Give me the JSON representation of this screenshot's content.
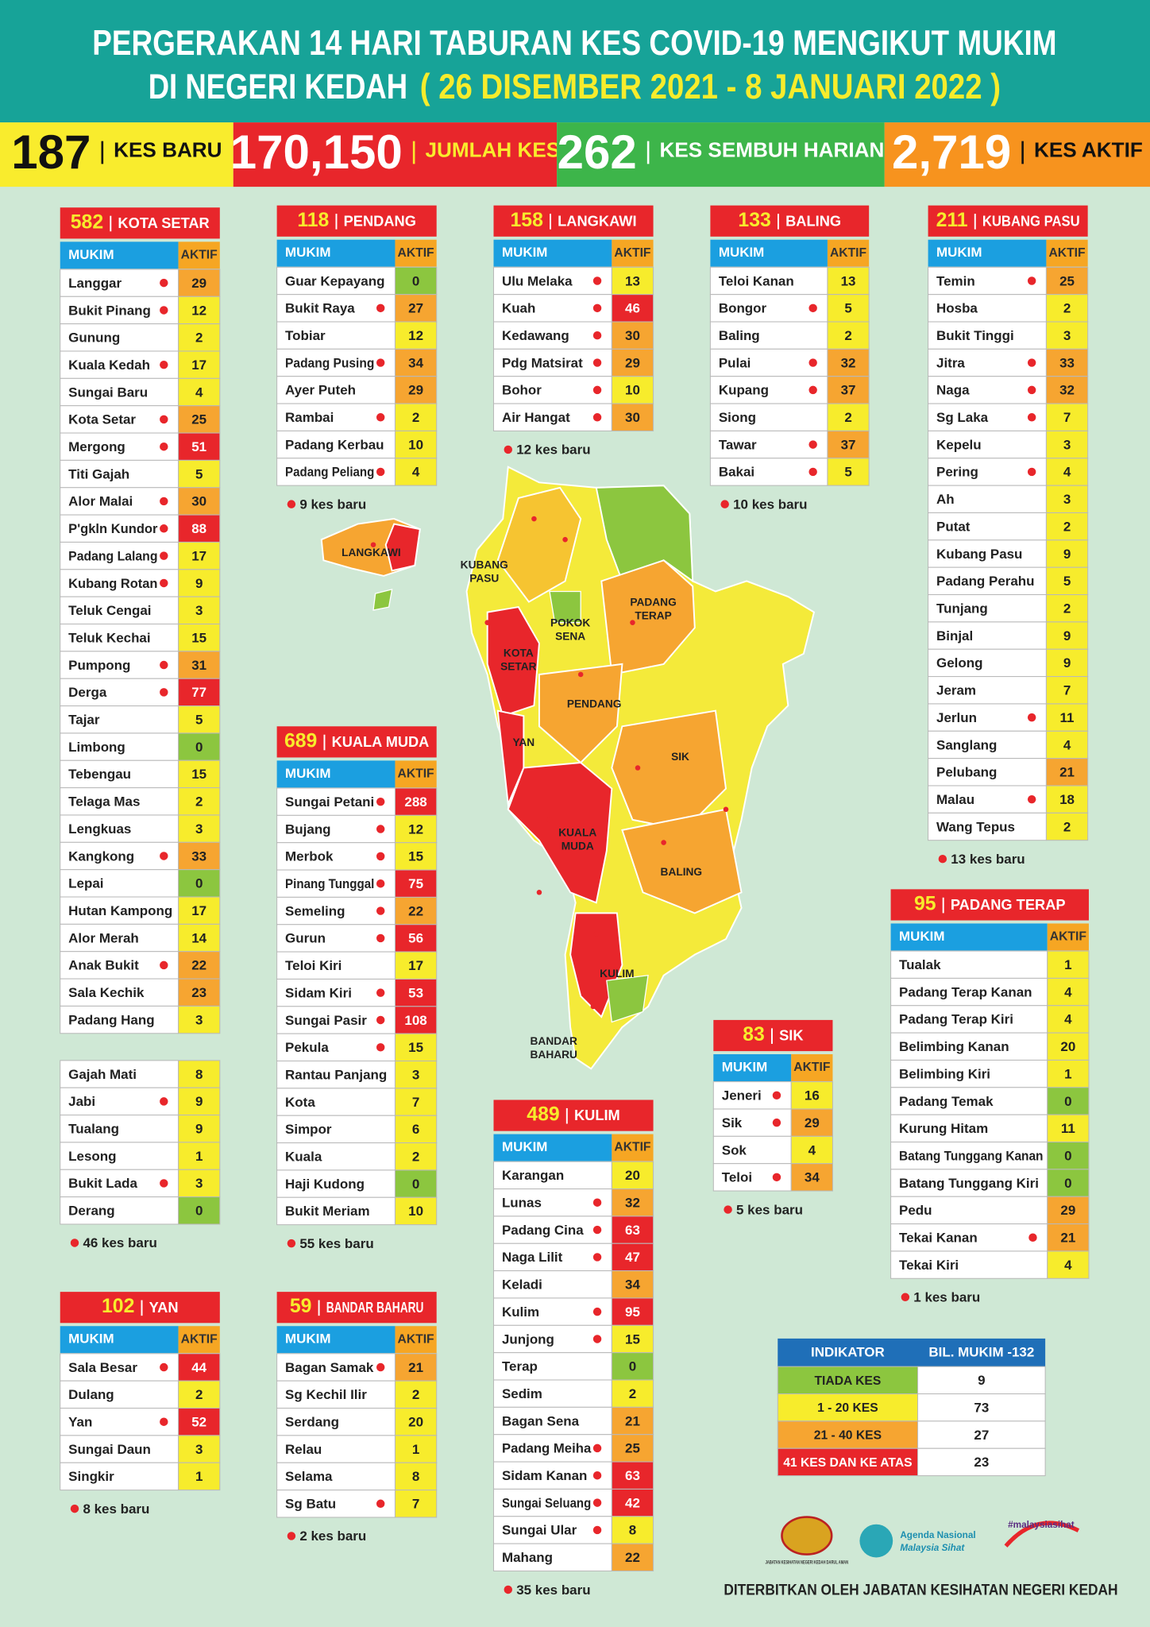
{
  "header": {
    "title_line1": "PERGERAKAN 14 HARI TABURAN KES COVID-19 MENGIKUT MUKIM",
    "title_line2": "DI NEGERI KEDAH",
    "date_range": "( 26 DISEMBER 2021 - 8 JANUARI 2022 )"
  },
  "stats": [
    {
      "value": "187",
      "label": "KES BARU",
      "color": "#f9ec2d",
      "number_color": "#111111",
      "label_color": "#111111"
    },
    {
      "value": "170,150",
      "label": "JUMLAH KES",
      "color": "#e8262b",
      "number_color": "#ffffff",
      "label_color": "#f9ec2d"
    },
    {
      "value": "262",
      "label": "KES SEMBUH HARIAN",
      "color": "#3db54a",
      "number_color": "#ffffff",
      "label_color": "#ffffff"
    },
    {
      "value": "2,719",
      "label": "KES AKTIF",
      "color": "#f7931e",
      "number_color": "#ffffff",
      "label_color": "#111111"
    }
  ],
  "column_headers": [
    "MUKIM",
    "AKTIF"
  ],
  "districts": [
    {
      "total": 582,
      "name": "KOTA SETAR",
      "footer": "46 kes baru",
      "sections": [
        [
          {
            "mukim": "Langgar",
            "aktif": 29,
            "new_case": true
          },
          {
            "mukim": "Bukit Pinang",
            "aktif": 12,
            "new_case": true
          },
          {
            "mukim": "Gunung",
            "aktif": 2
          },
          {
            "mukim": "Kuala Kedah",
            "aktif": 17,
            "new_case": true
          },
          {
            "mukim": "Sungai Baru",
            "aktif": 4
          },
          {
            "mukim": "Kota Setar",
            "aktif": 25,
            "new_case": true
          },
          {
            "mukim": "Mergong",
            "aktif": 51,
            "new_case": true
          },
          {
            "mukim": "Titi Gajah",
            "aktif": 5
          },
          {
            "mukim": "Alor Malai",
            "aktif": 30,
            "new_case": true
          },
          {
            "mukim": "P'gkln Kundor",
            "aktif": 88,
            "new_case": true
          },
          {
            "mukim": "Padang Lalang",
            "aktif": 17,
            "new_case": true
          },
          {
            "mukim": "Kubang Rotan",
            "aktif": 9,
            "new_case": true
          },
          {
            "mukim": "Teluk Cengai",
            "aktif": 3
          },
          {
            "mukim": "Teluk Kechai",
            "aktif": 15
          },
          {
            "mukim": "Pumpong",
            "aktif": 31,
            "new_case": true
          },
          {
            "mukim": "Derga",
            "aktif": 77,
            "new_case": true
          },
          {
            "mukim": "Tajar",
            "aktif": 5
          },
          {
            "mukim": "Limbong",
            "aktif": 0
          },
          {
            "mukim": "Tebengau",
            "aktif": 15
          },
          {
            "mukim": "Telaga Mas",
            "aktif": 2
          },
          {
            "mukim": "Lengkuas",
            "aktif": 3
          },
          {
            "mukim": "Kangkong",
            "aktif": 33,
            "new_case": true
          },
          {
            "mukim": "Lepai",
            "aktif": 0
          },
          {
            "mukim": "Hutan Kampong",
            "aktif": 17
          },
          {
            "mukim": "Alor Merah",
            "aktif": 14
          },
          {
            "mukim": "Anak Bukit",
            "aktif": 22,
            "new_case": true
          },
          {
            "mukim": "Sala Kechik",
            "aktif": 23
          },
          {
            "mukim": "Padang Hang",
            "aktif": 3
          }
        ],
        [
          {
            "mukim": "Gajah Mati",
            "aktif": 8
          },
          {
            "mukim": "Jabi",
            "aktif": 9,
            "new_case": true
          },
          {
            "mukim": "Tualang",
            "aktif": 9
          },
          {
            "mukim": "Lesong",
            "aktif": 1
          },
          {
            "mukim": "Bukit Lada",
            "aktif": 3,
            "new_case": true
          },
          {
            "mukim": "Derang",
            "aktif": 0
          }
        ]
      ]
    },
    {
      "total": 118,
      "name": "PENDANG",
      "footer": "9 kes baru",
      "sections": [
        [
          {
            "mukim": "Guar Kepayang",
            "aktif": 0
          },
          {
            "mukim": "Bukit Raya",
            "aktif": 27,
            "new_case": true
          },
          {
            "mukim": "Tobiar",
            "aktif": 12
          },
          {
            "mukim": "Padang Pusing",
            "aktif": 34,
            "new_case": true
          },
          {
            "mukim": "Ayer Puteh",
            "aktif": 29
          },
          {
            "mukim": "Rambai",
            "aktif": 2,
            "new_case": true
          },
          {
            "mukim": "Padang Kerbau",
            "aktif": 10
          },
          {
            "mukim": "Padang Peliang",
            "aktif": 4,
            "new_case": true
          }
        ]
      ]
    },
    {
      "total": 158,
      "name": "LANGKAWI",
      "footer": "12 kes baru",
      "sections": [
        [
          {
            "mukim": "Ulu Melaka",
            "aktif": 13,
            "new_case": true
          },
          {
            "mukim": "Kuah",
            "aktif": 46,
            "new_case": true
          },
          {
            "mukim": "Kedawang",
            "aktif": 30,
            "new_case": true
          },
          {
            "mukim": "Pdg Matsirat",
            "aktif": 29,
            "new_case": true
          },
          {
            "mukim": "Bohor",
            "aktif": 10,
            "new_case": true
          },
          {
            "mukim": "Air Hangat",
            "aktif": 30,
            "new_case": true
          }
        ]
      ]
    },
    {
      "total": 133,
      "name": "BALING",
      "footer": "10 kes baru",
      "sections": [
        [
          {
            "mukim": "Teloi Kanan",
            "aktif": 13
          },
          {
            "mukim": "Bongor",
            "aktif": 5,
            "new_case": true
          },
          {
            "mukim": "Baling",
            "aktif": 2
          },
          {
            "mukim": "Pulai",
            "aktif": 32,
            "new_case": true
          },
          {
            "mukim": "Kupang",
            "aktif": 37,
            "new_case": true
          },
          {
            "mukim": "Siong",
            "aktif": 2
          },
          {
            "mukim": "Tawar",
            "aktif": 37,
            "new_case": true
          },
          {
            "mukim": "Bakai",
            "aktif": 5,
            "new_case": true
          }
        ]
      ]
    },
    {
      "total": 211,
      "name": "KUBANG PASU",
      "footer": "13 kes baru",
      "sections": [
        [
          {
            "mukim": "Temin",
            "aktif": 25,
            "new_case": true
          },
          {
            "mukim": "Hosba",
            "aktif": 2
          },
          {
            "mukim": "Bukit Tinggi",
            "aktif": 3
          },
          {
            "mukim": "Jitra",
            "aktif": 33,
            "new_case": true
          },
          {
            "mukim": "Naga",
            "aktif": 32,
            "new_case": true
          },
          {
            "mukim": "Sg Laka",
            "aktif": 7,
            "new_case": true
          },
          {
            "mukim": "Kepelu",
            "aktif": 3
          },
          {
            "mukim": "Pering",
            "aktif": 4,
            "new_case": true
          },
          {
            "mukim": "Ah",
            "aktif": 3
          },
          {
            "mukim": "Putat",
            "aktif": 2
          },
          {
            "mukim": "Kubang Pasu",
            "aktif": 9
          },
          {
            "mukim": "Padang Perahu",
            "aktif": 5
          },
          {
            "mukim": "Tunjang",
            "aktif": 2
          },
          {
            "mukim": "Binjal",
            "aktif": 9
          },
          {
            "mukim": "Gelong",
            "aktif": 9
          },
          {
            "mukim": "Jeram",
            "aktif": 7
          },
          {
            "mukim": "Jerlun",
            "aktif": 11,
            "new_case": true
          },
          {
            "mukim": "Sanglang",
            "aktif": 4
          },
          {
            "mukim": "Pelubang",
            "aktif": 21
          },
          {
            "mukim": "Malau",
            "aktif": 18,
            "new_case": true
          },
          {
            "mukim": "Wang Tepus",
            "aktif": 2
          }
        ]
      ]
    },
    {
      "total": 689,
      "name": "KUALA MUDA",
      "footer": "55 kes baru",
      "sections": [
        [
          {
            "mukim": "Sungai Petani",
            "aktif": 288,
            "new_case": true
          },
          {
            "mukim": "Bujang",
            "aktif": 12,
            "new_case": true
          },
          {
            "mukim": "Merbok",
            "aktif": 15,
            "new_case": true
          },
          {
            "mukim": "Pinang Tunggal",
            "aktif": 75,
            "new_case": true
          },
          {
            "mukim": "Semeling",
            "aktif": 22,
            "new_case": true
          },
          {
            "mukim": "Gurun",
            "aktif": 56,
            "new_case": true
          },
          {
            "mukim": "Teloi Kiri",
            "aktif": 17
          },
          {
            "mukim": "Sidam Kiri",
            "aktif": 53,
            "new_case": true
          },
          {
            "mukim": "Sungai Pasir",
            "aktif": 108,
            "new_case": true
          },
          {
            "mukim": "Pekula",
            "aktif": 15,
            "new_case": true
          },
          {
            "mukim": "Rantau Panjang",
            "aktif": 3
          },
          {
            "mukim": "Kota",
            "aktif": 7
          },
          {
            "mukim": "Simpor",
            "aktif": 6
          },
          {
            "mukim": "Kuala",
            "aktif": 2
          },
          {
            "mukim": "Haji Kudong",
            "aktif": 0
          },
          {
            "mukim": "Bukit Meriam",
            "aktif": 10
          }
        ]
      ]
    },
    {
      "total": 102,
      "name": "YAN",
      "footer": "8 kes baru",
      "sections": [
        [
          {
            "mukim": "Sala Besar",
            "aktif": 44,
            "new_case": true
          },
          {
            "mukim": "Dulang",
            "aktif": 2
          },
          {
            "mukim": "Yan",
            "aktif": 52,
            "new_case": true
          },
          {
            "mukim": "Sungai Daun",
            "aktif": 3
          },
          {
            "mukim": "Singkir",
            "aktif": 1
          }
        ]
      ]
    },
    {
      "total": 59,
      "name": "BANDAR BAHARU",
      "footer": "2 kes baru",
      "sections": [
        [
          {
            "mukim": "Bagan Samak",
            "aktif": 21,
            "new_case": true
          },
          {
            "mukim": "Sg Kechil Ilir",
            "aktif": 2
          },
          {
            "mukim": "Serdang",
            "aktif": 20
          },
          {
            "mukim": "Relau",
            "aktif": 1
          },
          {
            "mukim": "Selama",
            "aktif": 8
          },
          {
            "mukim": "Sg Batu",
            "aktif": 7,
            "new_case": true
          }
        ]
      ]
    },
    {
      "total": 489,
      "name": "KULIM",
      "footer": "35 kes baru",
      "sections": [
        [
          {
            "mukim": "Karangan",
            "aktif": 20
          },
          {
            "mukim": "Lunas",
            "aktif": 32,
            "new_case": true
          },
          {
            "mukim": "Padang Cina",
            "aktif": 63,
            "new_case": true
          },
          {
            "mukim": "Naga Lilit",
            "aktif": 47,
            "new_case": true
          },
          {
            "mukim": "Keladi",
            "aktif": 34
          },
          {
            "mukim": "Kulim",
            "aktif": 95,
            "new_case": true
          },
          {
            "mukim": "Junjong",
            "aktif": 15,
            "new_case": true
          },
          {
            "mukim": "Terap",
            "aktif": 0
          },
          {
            "mukim": "Sedim",
            "aktif": 2
          },
          {
            "mukim": "Bagan Sena",
            "aktif": 21
          },
          {
            "mukim": "Padang Meiha",
            "aktif": 25,
            "new_case": true
          },
          {
            "mukim": "Sidam Kanan",
            "aktif": 63,
            "new_case": true
          },
          {
            "mukim": "Sungai Seluang",
            "aktif": 42,
            "new_case": true
          },
          {
            "mukim": "Sungai Ular",
            "aktif": 8,
            "new_case": true
          },
          {
            "mukim": "Mahang",
            "aktif": 22
          }
        ]
      ]
    },
    {
      "total": 83,
      "name": "SIK",
      "footer": "5 kes baru",
      "sections": [
        [
          {
            "mukim": "Jeneri",
            "aktif": 16,
            "new_case": true
          },
          {
            "mukim": "Sik",
            "aktif": 29,
            "new_case": true
          },
          {
            "mukim": "Sok",
            "aktif": 4
          },
          {
            "mukim": "Teloi",
            "aktif": 34,
            "new_case": true
          }
        ]
      ]
    },
    {
      "total": 95,
      "name": "PADANG TERAP",
      "footer": "1 kes baru",
      "sections": [
        [
          {
            "mukim": "Tualak",
            "aktif": 1
          },
          {
            "mukim": "Padang Terap Kanan",
            "aktif": 4
          },
          {
            "mukim": "Padang Terap Kiri",
            "aktif": 4
          },
          {
            "mukim": "Belimbing Kanan",
            "aktif": 20
          },
          {
            "mukim": "Belimbing Kiri",
            "aktif": 1
          },
          {
            "mukim": "Padang Temak",
            "aktif": 0
          },
          {
            "mukim": "Kurung Hitam",
            "aktif": 11
          },
          {
            "mukim": "Batang Tunggang Kanan",
            "aktif": 0
          },
          {
            "mukim": "Batang Tunggang Kiri",
            "aktif": 0
          },
          {
            "mukim": "Pedu",
            "aktif": 29
          },
          {
            "mukim": "Tekai Kanan",
            "aktif": 21,
            "new_case": true
          },
          {
            "mukim": "Tekai Kiri",
            "aktif": 4
          }
        ]
      ]
    }
  ],
  "legend": {
    "headers": [
      "INDIKATOR",
      "BIL. MUKIM -132"
    ],
    "rows": [
      {
        "label": "TIADA KES",
        "count": 9,
        "color": "#8cc63f",
        "range": [
          0,
          0
        ]
      },
      {
        "label": "1 - 20 KES",
        "count": 73,
        "color": "#f7ec2c",
        "range": [
          1,
          20
        ]
      },
      {
        "label": "21 - 40 KES",
        "count": 27,
        "color": "#f6a531",
        "range": [
          21,
          40
        ]
      },
      {
        "label": "41 KES DAN KE ATAS",
        "count": 23,
        "color": "#e8262b",
        "range": [
          41,
          null
        ]
      }
    ]
  },
  "map": {
    "labels": [
      [
        "LANGKAWI"
      ],
      [
        "KUBANG",
        "PASU"
      ],
      [
        "POKOK",
        "SENA"
      ],
      [
        "PADANG",
        "TERAP"
      ],
      [
        "KOTA",
        "SETAR"
      ],
      [
        "PENDANG"
      ],
      [
        "YAN"
      ],
      [
        "SIK"
      ],
      [
        "KUALA",
        "MUDA"
      ],
      [
        "BALING"
      ],
      [
        "KULIM"
      ],
      [
        "BANDAR",
        "BAHARU"
      ]
    ]
  },
  "logos": {
    "jkn": "JABATAN KESIHATAN NEGERI KEDAH DARUL AMAN",
    "agenda_line1": "Agenda Nasional",
    "agenda_line2": "Malaysia Sihat",
    "tag": "#malaysiasihat"
  },
  "publisher": "DITERBITKAN OLEH JABATAN KESIHATAN NEGERI KEDAH"
}
